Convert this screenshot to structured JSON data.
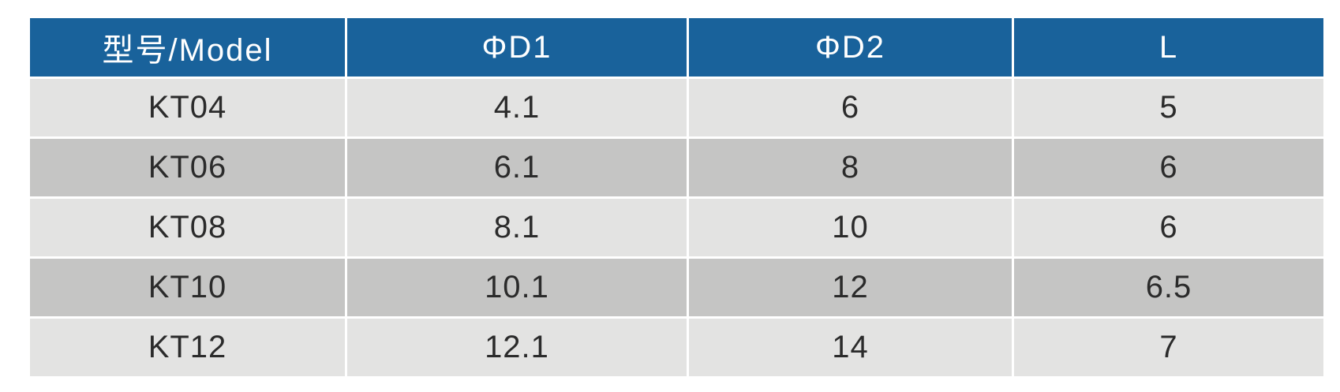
{
  "table": {
    "columns": [
      {
        "key": "model",
        "label": "型号/Model"
      },
      {
        "key": "d1",
        "label": "ΦD1"
      },
      {
        "key": "d2",
        "label": "ΦD2"
      },
      {
        "key": "l",
        "label": "L"
      }
    ],
    "rows": [
      [
        "KT04",
        "4.1",
        "6",
        "5"
      ],
      [
        "KT06",
        "6.1",
        "8",
        "6"
      ],
      [
        "KT08",
        "8.1",
        "10",
        "6"
      ],
      [
        "KT10",
        "10.1",
        "12",
        "6.5"
      ],
      [
        "KT12",
        "12.1",
        "14",
        "7"
      ]
    ]
  },
  "colors": {
    "header_bg": "#19629b",
    "header_text": "#ffffff",
    "row_light": "#e3e3e2",
    "row_dark": "#c5c5c4",
    "cell_text": "#2b2b2b",
    "divider": "#ffffff"
  }
}
